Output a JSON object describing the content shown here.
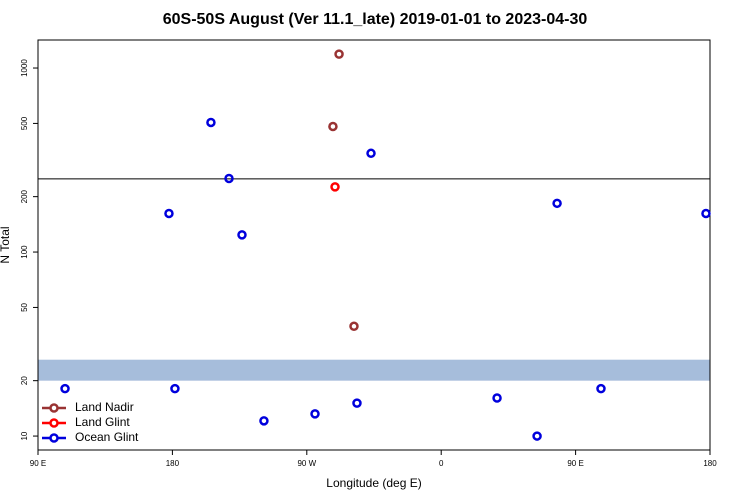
{
  "chart_data": {
    "type": "scatter",
    "title": "60S-50S August (Ver 11.1_late)   2019-01-01 to 2023-04-30",
    "xlabel": "Longitude (deg E)",
    "ylabel": "N Total",
    "log_y": true,
    "legend": "lower left",
    "xlim": [
      90,
      540
    ],
    "xticks": [
      {
        "value": 90,
        "label": "90 E"
      },
      180,
      {
        "value": 270,
        "label": "90 W"
      },
      {
        "value": 360,
        "label": "0"
      },
      {
        "value": 450,
        "label": "90 E"
      },
      {
        "value": 540,
        "label": "180"
      }
    ],
    "ylim": [
      8.4,
      1420
    ],
    "yticks": [
      10,
      20,
      50,
      100,
      200,
      500,
      1000
    ],
    "hline": 250,
    "band": [
      20,
      26
    ],
    "band_color": "#a6bddb",
    "series": [
      {
        "name": "Land Nadir",
        "color": "#993333",
        "x": [
          291.6,
          287.5,
          301.6
        ],
        "values": [
          1190,
          481,
          39.5
        ]
      },
      {
        "name": "Land Glint",
        "color": "#ff0000",
        "x": [
          288.9
        ],
        "values": [
          226
        ]
      },
      {
        "name": "Ocean Glint",
        "color": "#0000dd",
        "x": [
          108.1,
          177.7,
          181.7,
          205.8,
          217.9,
          226.6,
          241.3,
          275.5,
          303.6,
          313.0,
          397.4,
          424.2,
          437.6,
          467.0,
          537.3
        ],
        "values": [
          18.1,
          162,
          18.1,
          506,
          251,
          124,
          12.1,
          13.2,
          15.1,
          344,
          16.1,
          10,
          184,
          18.1,
          162
        ]
      }
    ]
  }
}
